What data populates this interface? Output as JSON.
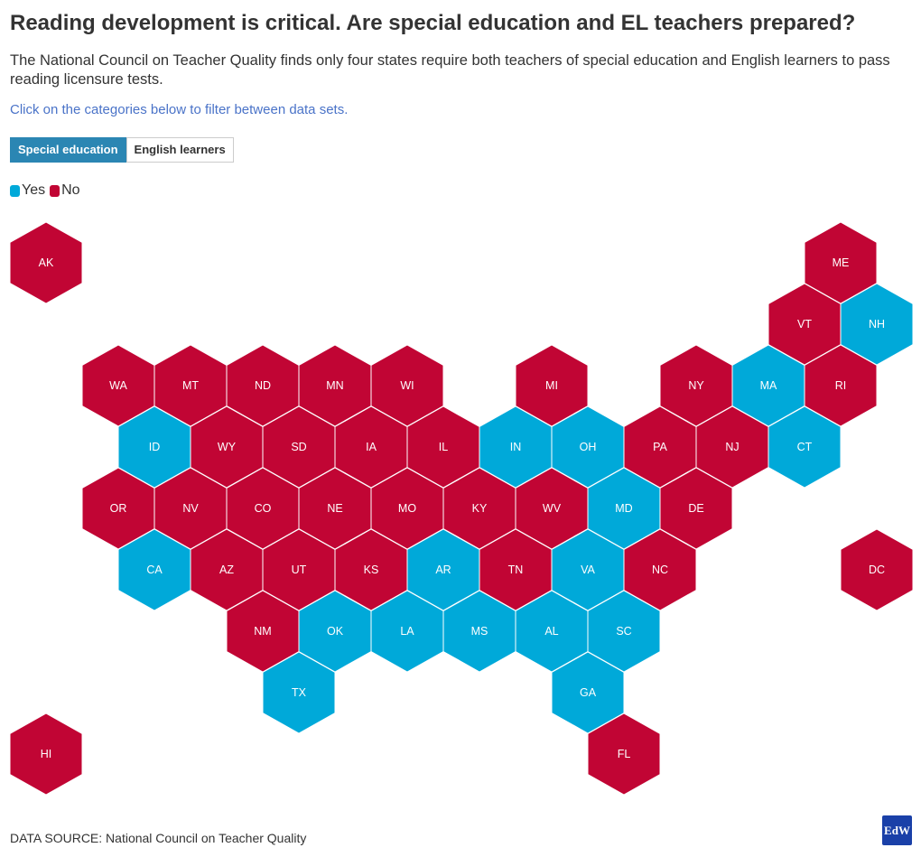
{
  "header": {
    "title": "Reading development is critical. Are special education and EL teachers prepared?",
    "subtitle": "The National Council on Teacher Quality finds only four states require both teachers of special education and English learners to pass reading licensure tests.",
    "instruction": "Click on the categories below to filter between data sets."
  },
  "tabs": [
    {
      "label": "Special education",
      "active": true
    },
    {
      "label": "English learners",
      "active": false
    }
  ],
  "legend": [
    {
      "label": "Yes",
      "color": "#00a9d9"
    },
    {
      "label": "No",
      "color": "#c10534"
    }
  ],
  "colors": {
    "yes": "#00a9d9",
    "no": "#c10534"
  },
  "chart_data": {
    "type": "hex-tile-map",
    "states": [
      {
        "id": "AK",
        "row": 0,
        "col": 0,
        "value": "No"
      },
      {
        "id": "ME",
        "row": 0,
        "col": 11,
        "value": "No"
      },
      {
        "id": "VT",
        "row": 1,
        "col": 10,
        "value": "No"
      },
      {
        "id": "NH",
        "row": 1,
        "col": 11,
        "value": "Yes"
      },
      {
        "id": "WA",
        "row": 2,
        "col": 1,
        "value": "No"
      },
      {
        "id": "MT",
        "row": 2,
        "col": 2,
        "value": "No"
      },
      {
        "id": "ND",
        "row": 2,
        "col": 3,
        "value": "No"
      },
      {
        "id": "MN",
        "row": 2,
        "col": 4,
        "value": "No"
      },
      {
        "id": "WI",
        "row": 2,
        "col": 5,
        "value": "No"
      },
      {
        "id": "MI",
        "row": 2,
        "col": 7,
        "value": "No"
      },
      {
        "id": "NY",
        "row": 2,
        "col": 9,
        "value": "No"
      },
      {
        "id": "MA",
        "row": 2,
        "col": 10,
        "value": "Yes"
      },
      {
        "id": "RI",
        "row": 2,
        "col": 11,
        "value": "No"
      },
      {
        "id": "ID",
        "row": 3,
        "col": 1,
        "value": "Yes"
      },
      {
        "id": "WY",
        "row": 3,
        "col": 2,
        "value": "No"
      },
      {
        "id": "SD",
        "row": 3,
        "col": 3,
        "value": "No"
      },
      {
        "id": "IA",
        "row": 3,
        "col": 4,
        "value": "No"
      },
      {
        "id": "IL",
        "row": 3,
        "col": 5,
        "value": "No"
      },
      {
        "id": "IN",
        "row": 3,
        "col": 6,
        "value": "Yes"
      },
      {
        "id": "OH",
        "row": 3,
        "col": 7,
        "value": "Yes"
      },
      {
        "id": "PA",
        "row": 3,
        "col": 8,
        "value": "No"
      },
      {
        "id": "NJ",
        "row": 3,
        "col": 9,
        "value": "No"
      },
      {
        "id": "CT",
        "row": 3,
        "col": 10,
        "value": "Yes"
      },
      {
        "id": "OR",
        "row": 4,
        "col": 1,
        "value": "No"
      },
      {
        "id": "NV",
        "row": 4,
        "col": 2,
        "value": "No"
      },
      {
        "id": "CO",
        "row": 4,
        "col": 3,
        "value": "No"
      },
      {
        "id": "NE",
        "row": 4,
        "col": 4,
        "value": "No"
      },
      {
        "id": "MO",
        "row": 4,
        "col": 5,
        "value": "No"
      },
      {
        "id": "KY",
        "row": 4,
        "col": 6,
        "value": "No"
      },
      {
        "id": "WV",
        "row": 4,
        "col": 7,
        "value": "No"
      },
      {
        "id": "MD",
        "row": 4,
        "col": 8,
        "value": "Yes"
      },
      {
        "id": "DE",
        "row": 4,
        "col": 9,
        "value": "No"
      },
      {
        "id": "CA",
        "row": 5,
        "col": 1,
        "value": "Yes"
      },
      {
        "id": "AZ",
        "row": 5,
        "col": 2,
        "value": "No"
      },
      {
        "id": "UT",
        "row": 5,
        "col": 3,
        "value": "No"
      },
      {
        "id": "KS",
        "row": 5,
        "col": 4,
        "value": "No"
      },
      {
        "id": "AR",
        "row": 5,
        "col": 5,
        "value": "Yes"
      },
      {
        "id": "TN",
        "row": 5,
        "col": 6,
        "value": "No"
      },
      {
        "id": "VA",
        "row": 5,
        "col": 7,
        "value": "Yes"
      },
      {
        "id": "NC",
        "row": 5,
        "col": 8,
        "value": "No"
      },
      {
        "id": "DC",
        "row": 5,
        "col": 11,
        "value": "No"
      },
      {
        "id": "NM",
        "row": 6,
        "col": 3,
        "value": "No"
      },
      {
        "id": "OK",
        "row": 6,
        "col": 4,
        "value": "Yes"
      },
      {
        "id": "LA",
        "row": 6,
        "col": 5,
        "value": "Yes"
      },
      {
        "id": "MS",
        "row": 6,
        "col": 6,
        "value": "Yes"
      },
      {
        "id": "AL",
        "row": 6,
        "col": 7,
        "value": "Yes"
      },
      {
        "id": "SC",
        "row": 6,
        "col": 8,
        "value": "Yes"
      },
      {
        "id": "TX",
        "row": 7,
        "col": 3,
        "value": "Yes"
      },
      {
        "id": "GA",
        "row": 7,
        "col": 7,
        "value": "Yes"
      },
      {
        "id": "HI",
        "row": 8,
        "col": 0,
        "value": "No"
      },
      {
        "id": "FL",
        "row": 8,
        "col": 8,
        "value": "No"
      }
    ]
  },
  "footer": {
    "source": "DATA SOURCE: National Council on Teacher Quality",
    "logo_text": "EdW"
  }
}
